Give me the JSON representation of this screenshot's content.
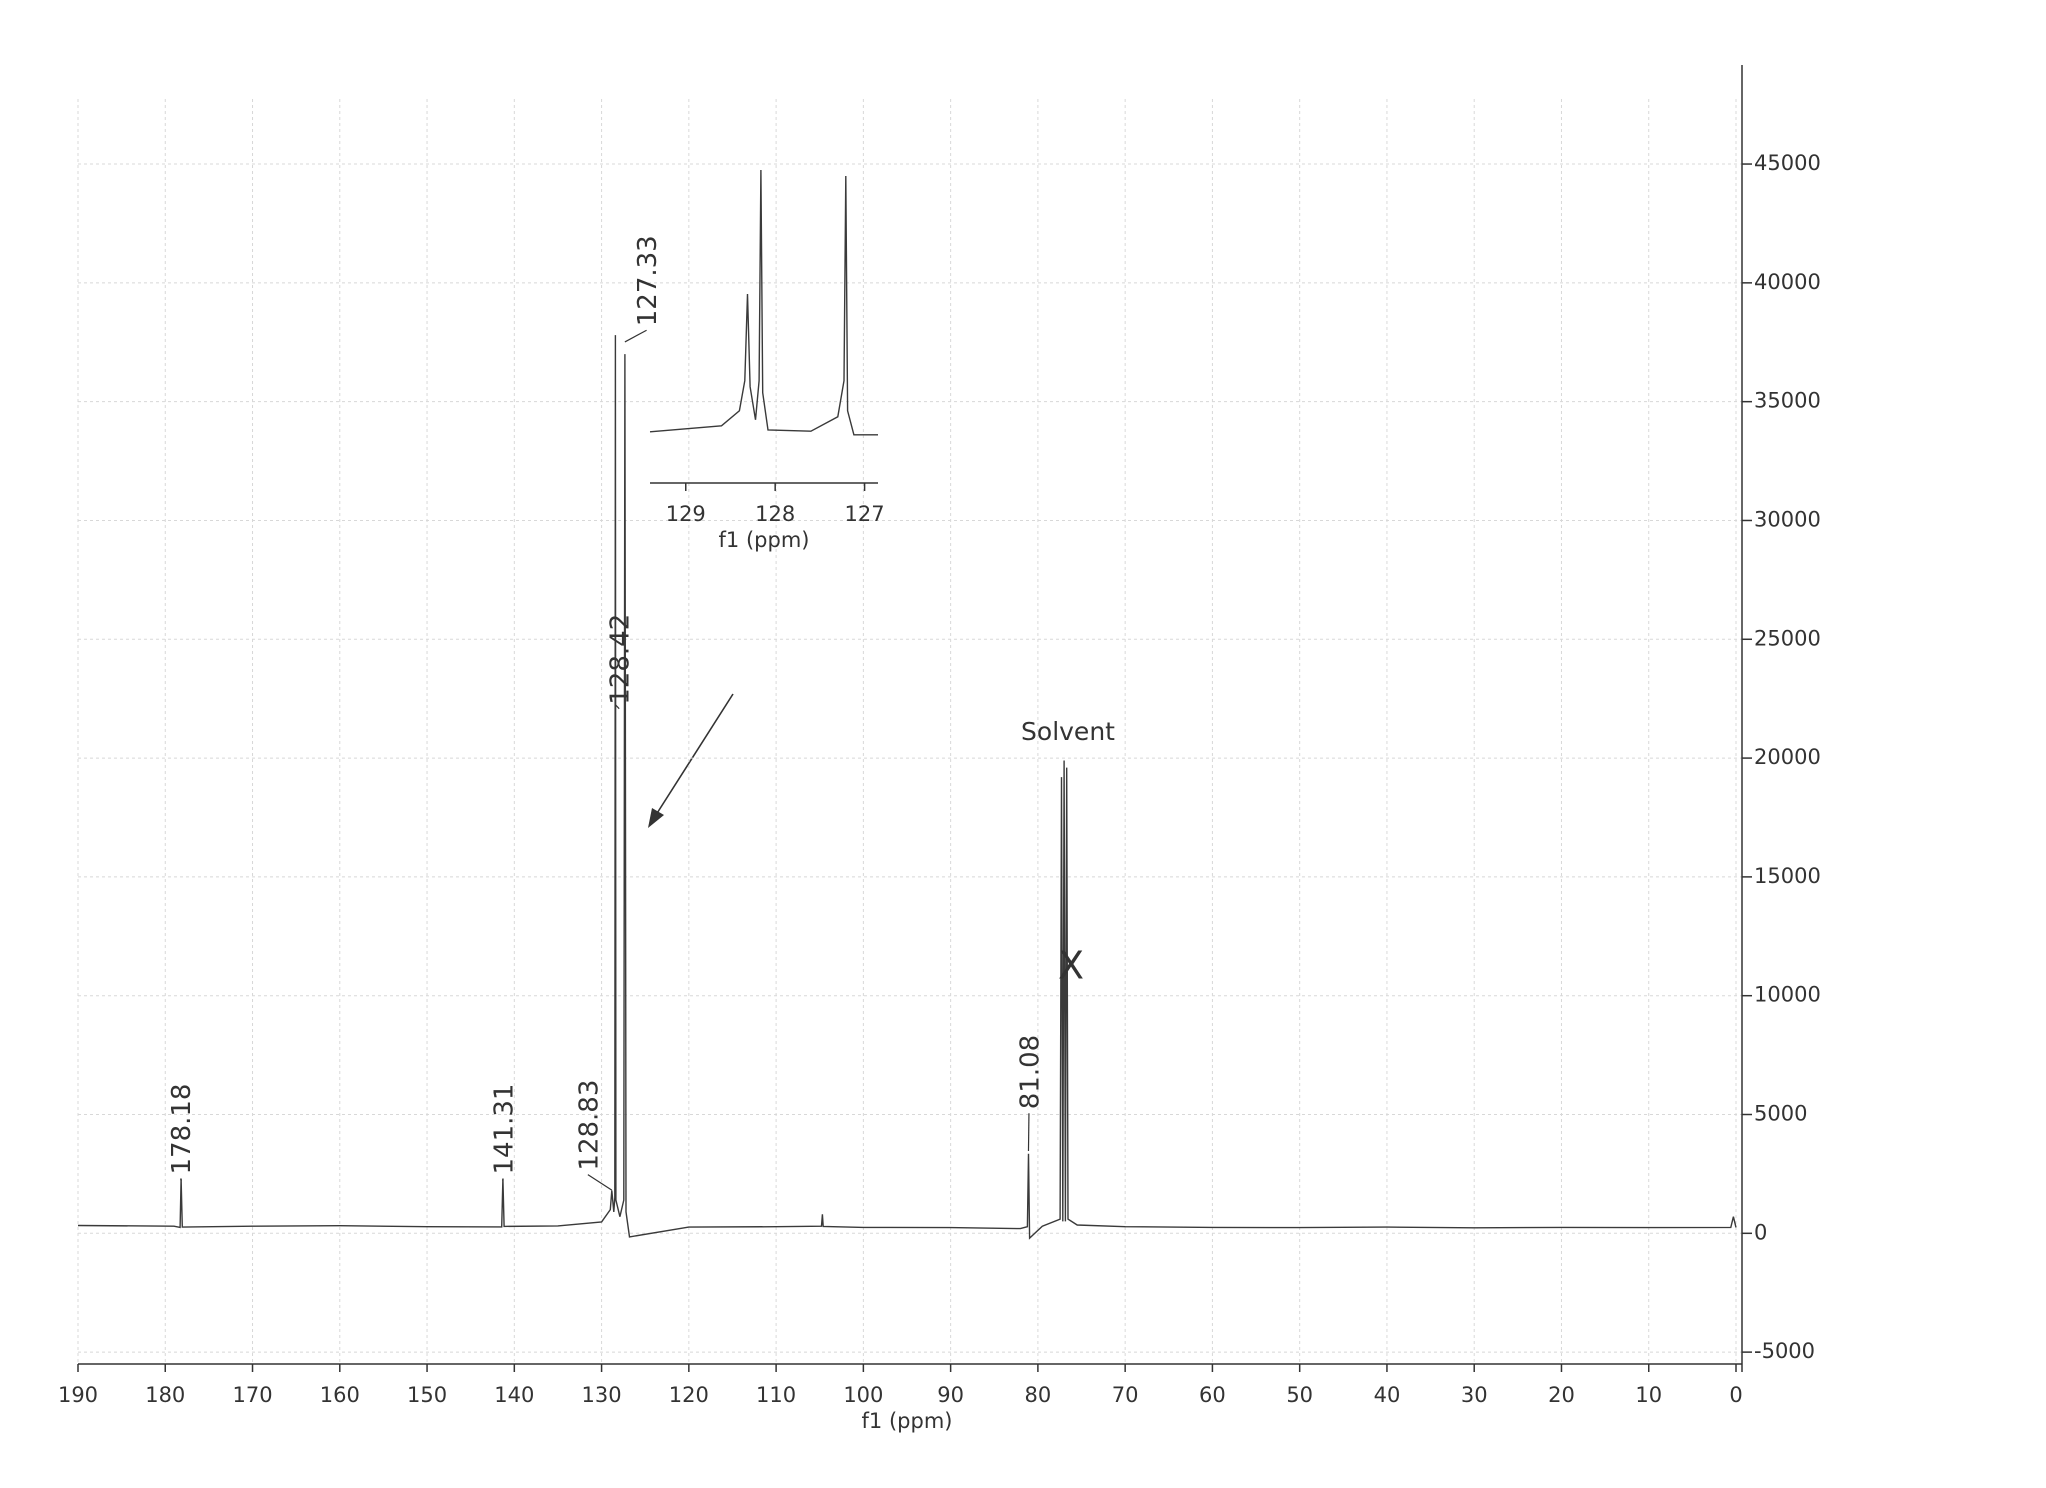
{
  "chart_data": [
    {
      "type": "line",
      "xlabel": "f1 (ppm)",
      "color": "#3a3a3a",
      "grid": true,
      "x": [
        190,
        179,
        178.3,
        178.18,
        178.05,
        170,
        160,
        150,
        141.45,
        141.31,
        141.17,
        135,
        130,
        129.0,
        128.83,
        128.6,
        128.48,
        128.42,
        128.36,
        127.9,
        127.45,
        127.33,
        127.2,
        126.8,
        120,
        110,
        104.8,
        104.7,
        104.6,
        100,
        90,
        82,
        81.2,
        81.08,
        80.95,
        79.5,
        77.45,
        77.3,
        77.15,
        77.0,
        76.85,
        76.7,
        76.55,
        75.5,
        70,
        60,
        50,
        40,
        30,
        20,
        10,
        0.6,
        0.3,
        0
      ],
      "values": [
        330,
        300,
        250,
        2300,
        260,
        300,
        320,
        280,
        270,
        2300,
        290,
        310,
        480,
        1000,
        1800,
        900,
        1500,
        37800,
        1400,
        700,
        1400,
        37000,
        900,
        -150,
        260,
        280,
        300,
        800,
        290,
        250,
        240,
        200,
        280,
        3350,
        -200,
        300,
        600,
        19200,
        500,
        19900,
        500,
        19600,
        600,
        350,
        280,
        250,
        240,
        260,
        230,
        250,
        240,
        250,
        700,
        250
      ],
      "xlim": [
        190,
        0
      ],
      "ylim": [
        -5500,
        49000
      ],
      "xticks": [
        190,
        180,
        170,
        160,
        150,
        140,
        130,
        120,
        110,
        100,
        90,
        80,
        70,
        60,
        50,
        40,
        30,
        20,
        10,
        0
      ],
      "yticks": [
        -5000,
        0,
        5000,
        10000,
        15000,
        20000,
        25000,
        30000,
        35000,
        40000,
        45000
      ],
      "peak_labels": [
        178.18,
        141.31,
        128.83,
        128.42,
        127.33,
        81.08
      ],
      "annotations": [
        "Solvent",
        "X"
      ]
    },
    {
      "type": "line",
      "xlabel": "f1 (ppm)",
      "color": "#3a3a3a",
      "x": [
        129.4,
        128.6,
        128.4,
        128.34,
        128.31,
        128.28,
        128.22,
        128.18,
        128.16,
        128.14,
        128.08,
        127.6,
        127.3,
        127.23,
        127.21,
        127.19,
        127.12,
        126.85
      ],
      "values": [
        500,
        1500,
        4000,
        9000,
        23400,
        8000,
        2500,
        9000,
        44000,
        7000,
        800,
        600,
        3000,
        9000,
        43000,
        4000,
        0,
        0
      ],
      "xlim": [
        129.4,
        126.85
      ],
      "ylim": [
        -8000,
        44000
      ],
      "xticks": [
        129,
        128,
        127
      ]
    }
  ]
}
